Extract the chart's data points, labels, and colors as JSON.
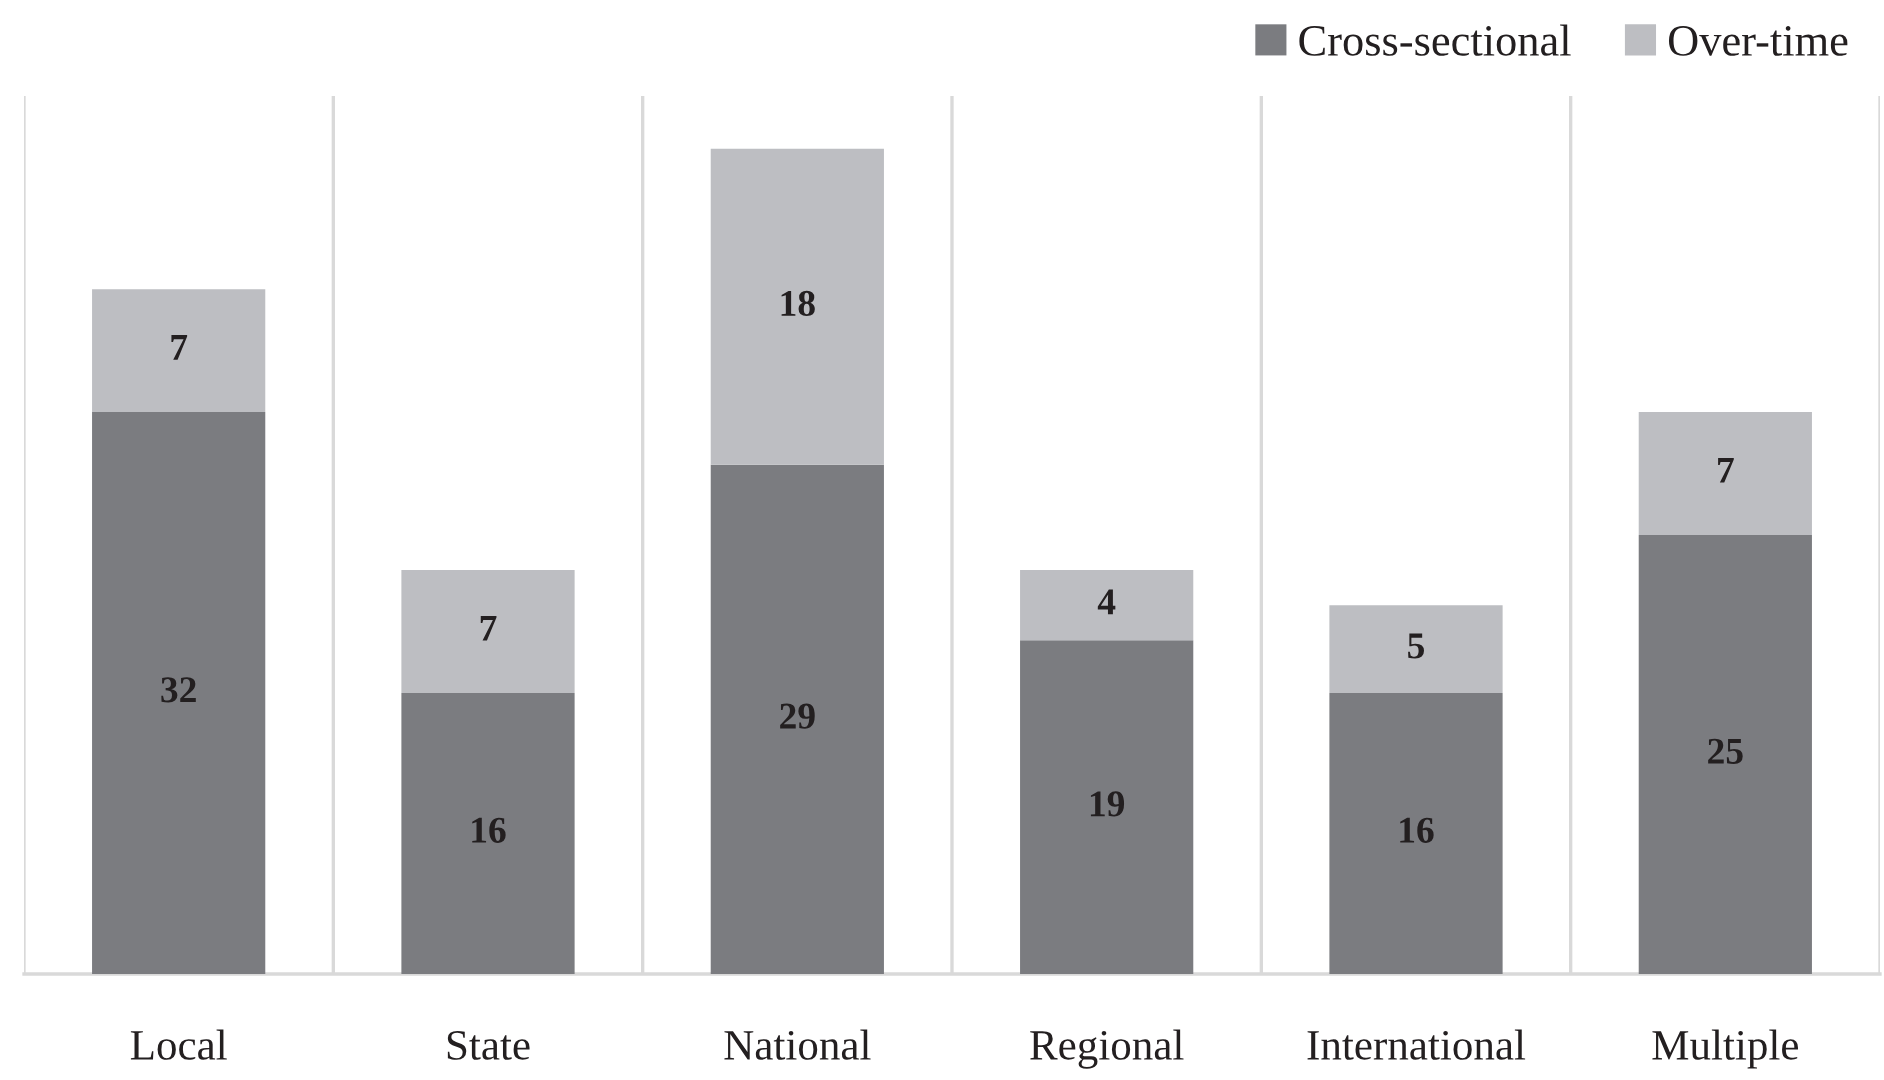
{
  "chart_data": {
    "type": "bar",
    "stacked": true,
    "categories": [
      "Local",
      "State",
      "National",
      "Regional",
      "International",
      "Multiple"
    ],
    "series": [
      {
        "name": "Cross-sectional",
        "color": "#7b7c80",
        "values": [
          32,
          16,
          29,
          19,
          16,
          25
        ]
      },
      {
        "name": "Over-time",
        "color": "#bdbec2",
        "values": [
          7,
          7,
          18,
          4,
          5,
          7
        ]
      }
    ],
    "ylim": [
      0,
      50
    ],
    "tick_labels": "x",
    "data_labels": true,
    "grid": "x",
    "legend": "top right"
  }
}
